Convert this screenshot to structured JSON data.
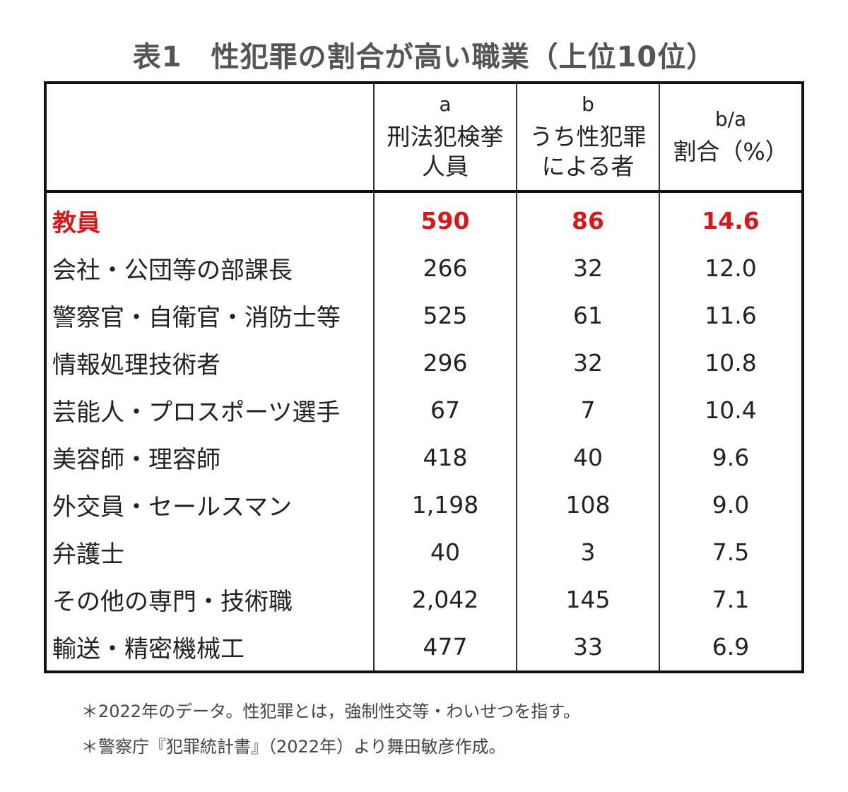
{
  "title": "表1　性犯罪の割合が高い職業（上位10位）",
  "header": {
    "col_a": {
      "letter": "a",
      "line1": "刑法犯検挙",
      "line2": "人員"
    },
    "col_b": {
      "letter": "b",
      "line1": "うち性犯罪",
      "line2": "による者"
    },
    "col_ratio": {
      "letter": "b/a",
      "line1": "割合（%）"
    }
  },
  "rows": [
    {
      "occupation": "教員",
      "a": "590",
      "b": "86",
      "ratio": "14.6",
      "highlight": true
    },
    {
      "occupation": "会社・公団等の部課長",
      "a": "266",
      "b": "32",
      "ratio": "12.0"
    },
    {
      "occupation": "警察官・自衛官・消防士等",
      "a": "525",
      "b": "61",
      "ratio": "11.6"
    },
    {
      "occupation": "情報処理技術者",
      "a": "296",
      "b": "32",
      "ratio": "10.8"
    },
    {
      "occupation": "芸能人・プロスポーツ選手",
      "a": "67",
      "b": "7",
      "ratio": "10.4"
    },
    {
      "occupation": "美容師・理容師",
      "a": "418",
      "b": "40",
      "ratio": "9.6"
    },
    {
      "occupation": "外交員・セールスマン",
      "a": "1,198",
      "b": "108",
      "ratio": "9.0"
    },
    {
      "occupation": "弁護士",
      "a": "40",
      "b": "3",
      "ratio": "7.5"
    },
    {
      "occupation": "その他の専門・技術職",
      "a": "2,042",
      "b": "145",
      "ratio": "7.1"
    },
    {
      "occupation": "輸送・精密機械工",
      "a": "477",
      "b": "33",
      "ratio": "6.9"
    }
  ],
  "notes": [
    "＊2022年のデータ。性犯罪とは，強制性交等・わいせつを指す。",
    "＊警察庁『犯罪統計書』（2022年）より舞田敏彦作成。"
  ],
  "colors": {
    "highlight": "#d7191c",
    "text": "#222222",
    "title": "#555555",
    "border": "#111111"
  }
}
